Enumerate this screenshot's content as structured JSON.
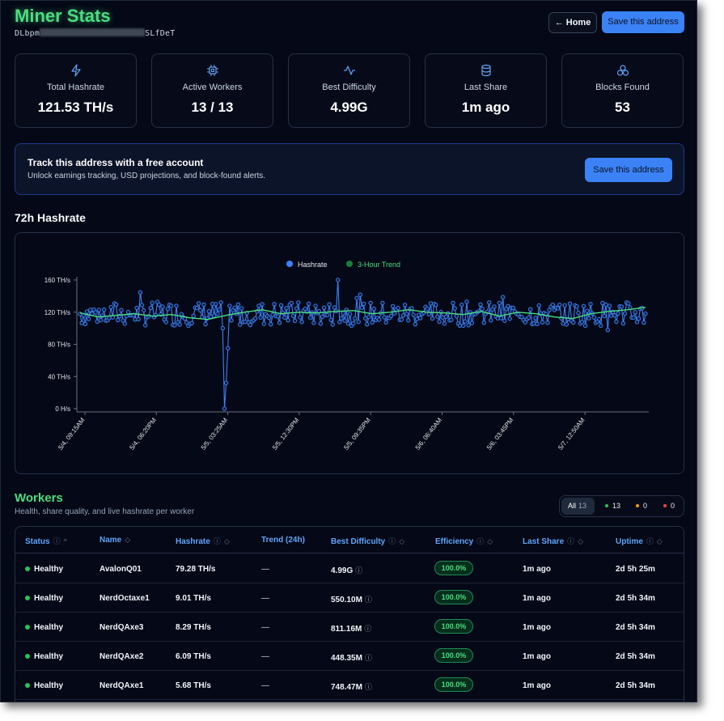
{
  "header": {
    "title": "Miner Stats",
    "address_prefix": "DLbpm",
    "address_suffix": "SLfDeT",
    "home_label": "← Home",
    "save_label": "Save this address"
  },
  "stats": [
    {
      "icon": "lightning-icon",
      "label": "Total Hashrate",
      "value": "121.53 TH/s"
    },
    {
      "icon": "cpu-icon",
      "label": "Active Workers",
      "value": "13 / 13"
    },
    {
      "icon": "activity-icon",
      "label": "Best Difficulty",
      "value": "4.99G"
    },
    {
      "icon": "database-icon",
      "label": "Last Share",
      "value": "1m ago"
    },
    {
      "icon": "blocks-icon",
      "label": "Blocks Found",
      "value": "53"
    }
  ],
  "promo": {
    "heading": "Track this address with a free account",
    "subtext": "Unlock earnings tracking, USD projections, and block-found alerts.",
    "button_label": "Save this address"
  },
  "chart_section": {
    "title": "72h Hashrate"
  },
  "chart_data": {
    "type": "line",
    "series": [
      {
        "name": "Hashrate",
        "color": "#3b82f6",
        "base": 118,
        "dip": {
          "near_x": "5/5, 03:25AM",
          "min": 0
        },
        "max": 160
      },
      {
        "name": "3-Hour Trend",
        "color": "#4ade80",
        "values": [
          119,
          114,
          116,
          118,
          115,
          117,
          113,
          111,
          116,
          120,
          123,
          118,
          120,
          119,
          121,
          122,
          118,
          120,
          123,
          120,
          119,
          117,
          121,
          115,
          120,
          118,
          114,
          112,
          118,
          121,
          123,
          126
        ]
      }
    ],
    "ylim": [
      0,
      160
    ],
    "y_ticks": [
      "0 H/s",
      "40 TH/s",
      "80 TH/s",
      "120 TH/s",
      "160 TH/s"
    ],
    "x_ticks": [
      "5/4, 09:15AM",
      "5/4, 06:20PM",
      "5/5, 03:25AM",
      "5/5, 12:30PM",
      "5/5, 09:35PM",
      "5/6, 06:40AM",
      "5/6, 03:45PM",
      "5/7, 12:50AM"
    ],
    "legend": "top-center",
    "grid": false
  },
  "workers": {
    "title": "Workers",
    "subtitle": "Health, share quality, and live hashrate per worker",
    "filters": {
      "all_label": "All",
      "all_count": "13",
      "healthy_count": "13",
      "warning_count": "0",
      "offline_count": "0"
    },
    "columns": [
      "Status",
      "Name",
      "Hashrate",
      "Trend (24h)",
      "Best Difficulty",
      "Efficiency",
      "Last Share",
      "Uptime"
    ],
    "rows": [
      {
        "status": "Healthy",
        "name": "AvalonQ01",
        "hashrate": "79.28 TH/s",
        "trend": "—",
        "best_diff": "4.99G",
        "efficiency": "100.0%",
        "last_share": "1m ago",
        "uptime": "2d 5h 25m"
      },
      {
        "status": "Healthy",
        "name": "NerdOctaxe1",
        "hashrate": "9.01 TH/s",
        "trend": "—",
        "best_diff": "550.10M",
        "efficiency": "100.0%",
        "last_share": "1m ago",
        "uptime": "2d 5h 34m"
      },
      {
        "status": "Healthy",
        "name": "NerdQAxe3",
        "hashrate": "8.29 TH/s",
        "trend": "—",
        "best_diff": "811.16M",
        "efficiency": "100.0%",
        "last_share": "1m ago",
        "uptime": "2d 5h 34m"
      },
      {
        "status": "Healthy",
        "name": "NerdQAxe2",
        "hashrate": "6.09 TH/s",
        "trend": "—",
        "best_diff": "448.35M",
        "efficiency": "100.0%",
        "last_share": "1m ago",
        "uptime": "2d 5h 34m"
      },
      {
        "status": "Healthy",
        "name": "NerdQAxe1",
        "hashrate": "5.68 TH/s",
        "trend": "—",
        "best_diff": "748.47M",
        "efficiency": "100.0%",
        "last_share": "1m ago",
        "uptime": "2d 5h 34m"
      }
    ]
  },
  "colors": {
    "accent": "#4ade80",
    "primary": "#3b82f6",
    "background": "#050816",
    "warning": "#f59e0b",
    "danger": "#ef4444"
  }
}
